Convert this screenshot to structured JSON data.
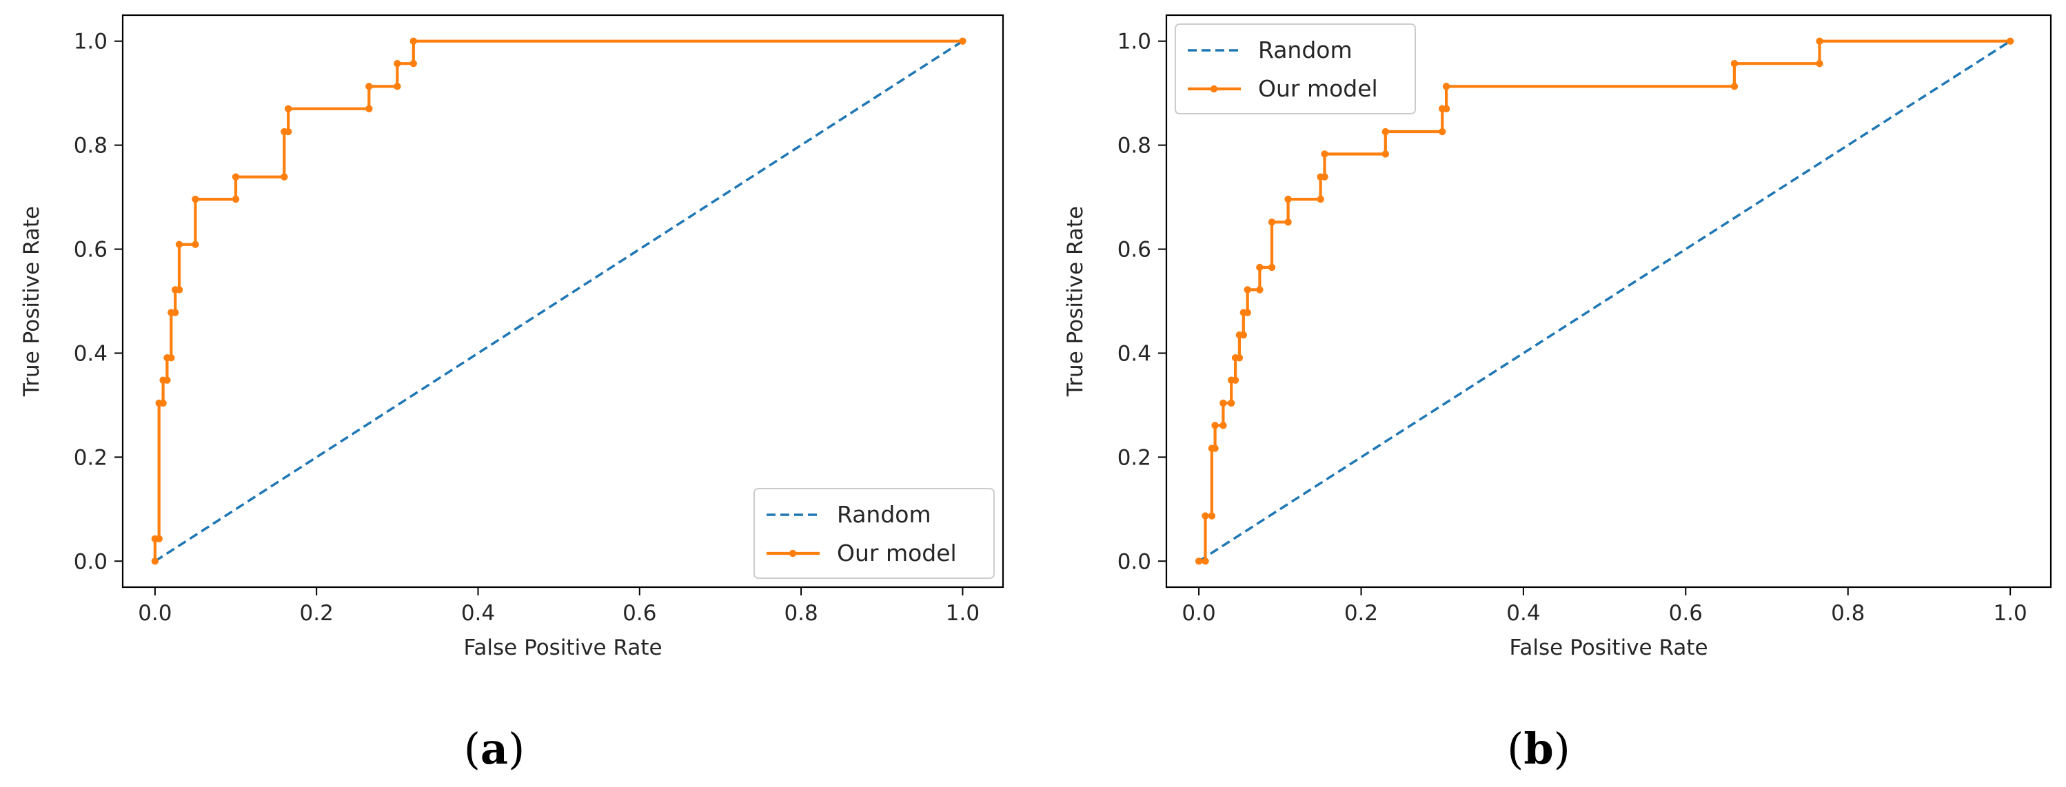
{
  "colors": {
    "random": "#1f77b4",
    "model": "#ff7f0e",
    "axis": "#000000",
    "text": "#262626"
  },
  "chart_data": [
    {
      "type": "line",
      "panel": "a",
      "caption_open": "(",
      "caption_letter": "a",
      "caption_close": ")",
      "xlabel": "False Positive Rate",
      "ylabel": "True Positive Rate",
      "xlim": [
        -0.04,
        1.05
      ],
      "ylim": [
        -0.05,
        1.05
      ],
      "xticks": [
        "0.0",
        "0.2",
        "0.4",
        "0.6",
        "0.8",
        "1.0"
      ],
      "yticks": [
        "0.0",
        "0.2",
        "0.4",
        "0.6",
        "0.8",
        "1.0"
      ],
      "legend_position": "lower-right",
      "series": [
        {
          "name": "Random",
          "style": "dashed",
          "x": [
            0,
            1
          ],
          "y": [
            0,
            1
          ]
        },
        {
          "name": "Our model",
          "style": "solid-marker",
          "x": [
            0,
            0,
            0.005,
            0.005,
            0.01,
            0.01,
            0.015,
            0.015,
            0.02,
            0.02,
            0.025,
            0.025,
            0.03,
            0.03,
            0.05,
            0.05,
            0.1,
            0.1,
            0.16,
            0.16,
            0.165,
            0.165,
            0.265,
            0.265,
            0.3,
            0.3,
            0.32,
            0.32,
            1
          ],
          "y": [
            0,
            0.043,
            0.043,
            0.304,
            0.304,
            0.348,
            0.348,
            0.391,
            0.391,
            0.478,
            0.478,
            0.522,
            0.522,
            0.609,
            0.609,
            0.696,
            0.696,
            0.739,
            0.739,
            0.826,
            0.826,
            0.87,
            0.87,
            0.913,
            0.913,
            0.957,
            0.957,
            1.0,
            1.0
          ]
        }
      ]
    },
    {
      "type": "line",
      "panel": "b",
      "caption_open": "(",
      "caption_letter": "b",
      "caption_close": ")",
      "xlabel": "False Positive Rate",
      "ylabel": "True Positive Rate",
      "xlim": [
        -0.04,
        1.05
      ],
      "ylim": [
        -0.05,
        1.05
      ],
      "xticks": [
        "0.0",
        "0.2",
        "0.4",
        "0.6",
        "0.8",
        "1.0"
      ],
      "yticks": [
        "0.0",
        "0.2",
        "0.4",
        "0.6",
        "0.8",
        "1.0"
      ],
      "legend_position": "upper-left",
      "series": [
        {
          "name": "Random",
          "style": "dashed",
          "x": [
            0,
            1
          ],
          "y": [
            0,
            1
          ]
        },
        {
          "name": "Our model",
          "style": "solid-marker",
          "x": [
            0,
            0.008,
            0.008,
            0.016,
            0.016,
            0.02,
            0.02,
            0.03,
            0.03,
            0.04,
            0.04,
            0.045,
            0.045,
            0.05,
            0.05,
            0.055,
            0.055,
            0.06,
            0.06,
            0.075,
            0.075,
            0.09,
            0.09,
            0.11,
            0.11,
            0.15,
            0.15,
            0.155,
            0.155,
            0.23,
            0.23,
            0.3,
            0.3,
            0.305,
            0.305,
            0.66,
            0.66,
            0.765,
            0.765,
            1
          ],
          "y": [
            0,
            0,
            0.087,
            0.087,
            0.217,
            0.217,
            0.261,
            0.261,
            0.304,
            0.304,
            0.348,
            0.348,
            0.391,
            0.391,
            0.435,
            0.435,
            0.478,
            0.478,
            0.522,
            0.522,
            0.565,
            0.565,
            0.652,
            0.652,
            0.696,
            0.696,
            0.739,
            0.739,
            0.783,
            0.783,
            0.826,
            0.826,
            0.87,
            0.87,
            0.913,
            0.913,
            0.957,
            0.957,
            1.0,
            1.0
          ]
        }
      ]
    }
  ]
}
